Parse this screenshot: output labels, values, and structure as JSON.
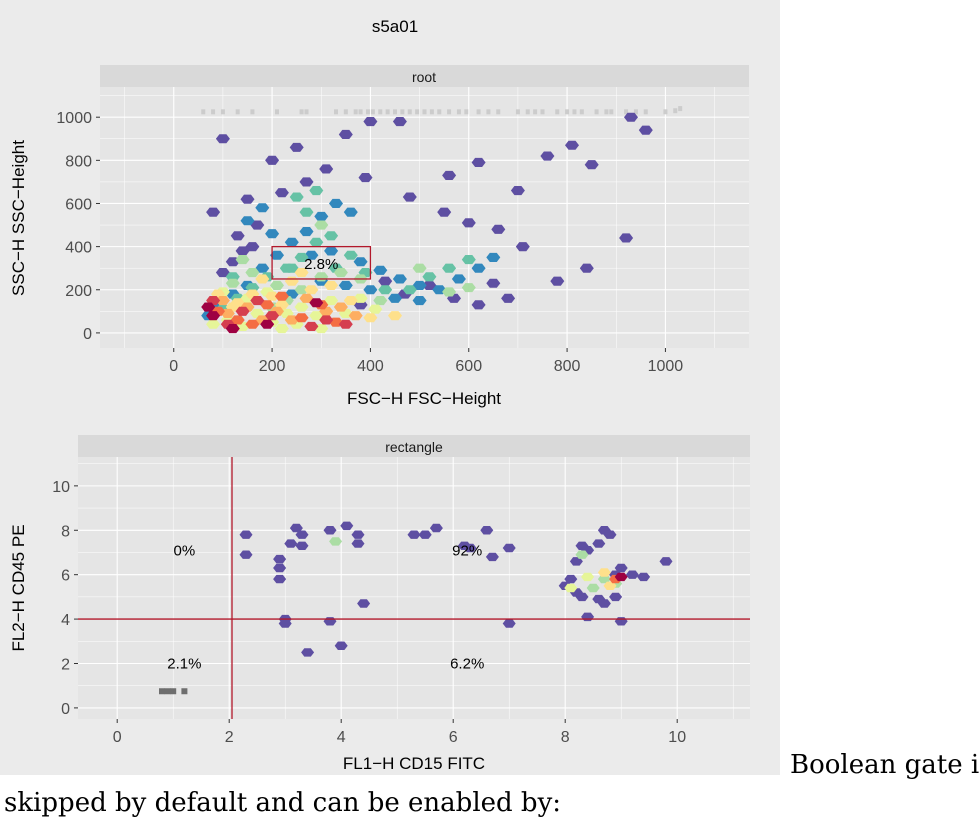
{
  "figure": {
    "title": "s5a01"
  },
  "chart_data": [
    {
      "type": "scatter",
      "subtype": "hexbin-density",
      "strip_label": "root",
      "xlabel": "FSC−H FSC−Height",
      "ylabel": "SSC−H SSC−Height",
      "xlim": [
        -150,
        1170
      ],
      "ylim": [
        -70,
        1140
      ],
      "x_ticks": [
        "0",
        "200",
        "400",
        "600",
        "800",
        "1000"
      ],
      "y_ticks": [
        "0",
        "200",
        "400",
        "600",
        "800",
        "1000"
      ],
      "gate": {
        "type": "rectangle",
        "x": [
          200,
          400
        ],
        "y": [
          250,
          400
        ],
        "label": "2.8%",
        "color": "#b2182b"
      },
      "points": [
        [
          100,
          280,
          1
        ],
        [
          120,
          330,
          1
        ],
        [
          140,
          380,
          1
        ],
        [
          160,
          400,
          1
        ],
        [
          130,
          450,
          1
        ],
        [
          170,
          500,
          1
        ],
        [
          80,
          560,
          1
        ],
        [
          150,
          620,
          1
        ],
        [
          220,
          650,
          1
        ],
        [
          270,
          700,
          1
        ],
        [
          310,
          760,
          1
        ],
        [
          100,
          900,
          1
        ],
        [
          200,
          800,
          1
        ],
        [
          250,
          860,
          1
        ],
        [
          350,
          920,
          1
        ],
        [
          400,
          980,
          1
        ],
        [
          460,
          980,
          1
        ],
        [
          390,
          720,
          1
        ],
        [
          480,
          630,
          1
        ],
        [
          550,
          560,
          1
        ],
        [
          600,
          510,
          1
        ],
        [
          660,
          480,
          1
        ],
        [
          710,
          400,
          1
        ],
        [
          780,
          240,
          1
        ],
        [
          840,
          300,
          1
        ],
        [
          920,
          440,
          1
        ],
        [
          700,
          660,
          1
        ],
        [
          560,
          730,
          1
        ],
        [
          620,
          790,
          1
        ],
        [
          760,
          820,
          1
        ],
        [
          810,
          870,
          1
        ],
        [
          850,
          780,
          1
        ],
        [
          930,
          1000,
          1
        ],
        [
          960,
          940,
          1
        ],
        [
          520,
          220,
          1
        ],
        [
          570,
          160,
          1
        ],
        [
          620,
          130,
          1
        ],
        [
          680,
          160,
          1
        ],
        [
          650,
          230,
          1
        ],
        [
          430,
          240,
          1
        ],
        [
          470,
          180,
          1
        ],
        [
          380,
          130,
          1
        ],
        [
          70,
          80,
          2
        ],
        [
          90,
          130,
          2
        ],
        [
          120,
          180,
          2
        ],
        [
          150,
          220,
          2
        ],
        [
          180,
          300,
          2
        ],
        [
          210,
          360,
          2
        ],
        [
          240,
          420,
          2
        ],
        [
          270,
          470,
          2
        ],
        [
          300,
          540,
          2
        ],
        [
          330,
          600,
          2
        ],
        [
          360,
          560,
          2
        ],
        [
          280,
          360,
          2
        ],
        [
          320,
          380,
          2
        ],
        [
          380,
          330,
          2
        ],
        [
          420,
          290,
          2
        ],
        [
          460,
          250,
          2
        ],
        [
          500,
          220,
          2
        ],
        [
          540,
          200,
          2
        ],
        [
          580,
          250,
          2
        ],
        [
          620,
          300,
          2
        ],
        [
          650,
          350,
          2
        ],
        [
          240,
          180,
          2
        ],
        [
          300,
          240,
          2
        ],
        [
          350,
          220,
          2
        ],
        [
          400,
          200,
          2
        ],
        [
          450,
          160,
          2
        ],
        [
          500,
          150,
          2
        ],
        [
          200,
          460,
          2
        ],
        [
          150,
          520,
          2
        ],
        [
          180,
          580,
          2
        ],
        [
          100,
          110,
          3
        ],
        [
          130,
          160,
          3
        ],
        [
          160,
          210,
          3
        ],
        [
          190,
          260,
          3
        ],
        [
          230,
          300,
          3
        ],
        [
          260,
          350,
          3
        ],
        [
          290,
          420,
          3
        ],
        [
          320,
          450,
          3
        ],
        [
          270,
          560,
          3
        ],
        [
          240,
          300,
          3
        ],
        [
          330,
          300,
          3
        ],
        [
          360,
          360,
          3
        ],
        [
          390,
          280,
          3
        ],
        [
          430,
          200,
          3
        ],
        [
          480,
          200,
          3
        ],
        [
          520,
          260,
          3
        ],
        [
          560,
          300,
          3
        ],
        [
          600,
          340,
          3
        ],
        [
          250,
          630,
          3
        ],
        [
          290,
          660,
          3
        ],
        [
          120,
          260,
          3
        ],
        [
          200,
          120,
          4
        ],
        [
          230,
          150,
          4
        ],
        [
          260,
          200,
          4
        ],
        [
          300,
          260,
          4
        ],
        [
          340,
          280,
          4
        ],
        [
          380,
          250,
          4
        ],
        [
          120,
          230,
          4
        ],
        [
          160,
          280,
          4
        ],
        [
          210,
          220,
          4
        ],
        [
          140,
          340,
          4
        ],
        [
          300,
          500,
          4
        ],
        [
          420,
          150,
          4
        ],
        [
          560,
          190,
          4
        ],
        [
          500,
          300,
          4
        ],
        [
          600,
          210,
          4
        ],
        [
          80,
          40,
          5
        ],
        [
          110,
          60,
          5
        ],
        [
          140,
          30,
          5
        ],
        [
          170,
          90,
          5
        ],
        [
          200,
          50,
          5
        ],
        [
          230,
          90,
          5
        ],
        [
          260,
          120,
          5
        ],
        [
          290,
          80,
          5
        ],
        [
          320,
          150,
          5
        ],
        [
          350,
          90,
          5
        ],
        [
          380,
          160,
          5
        ],
        [
          410,
          110,
          5
        ],
        [
          150,
          160,
          5
        ],
        [
          190,
          190,
          5
        ],
        [
          100,
          190,
          5
        ],
        [
          250,
          40,
          5
        ],
        [
          300,
          20,
          5
        ],
        [
          220,
          20,
          5
        ],
        [
          90,
          180,
          6
        ],
        [
          130,
          140,
          6
        ],
        [
          160,
          180,
          6
        ],
        [
          200,
          170,
          6
        ],
        [
          240,
          240,
          6
        ],
        [
          280,
          200,
          6
        ],
        [
          320,
          220,
          6
        ],
        [
          360,
          150,
          6
        ],
        [
          400,
          70,
          6
        ],
        [
          120,
          120,
          6
        ],
        [
          180,
          250,
          6
        ],
        [
          450,
          80,
          6
        ],
        [
          260,
          280,
          6
        ],
        [
          220,
          130,
          6
        ],
        [
          110,
          90,
          7
        ],
        [
          150,
          120,
          7
        ],
        [
          180,
          60,
          7
        ],
        [
          210,
          100,
          7
        ],
        [
          240,
          60,
          7
        ],
        [
          270,
          160,
          7
        ],
        [
          310,
          100,
          7
        ],
        [
          340,
          120,
          7
        ],
        [
          370,
          80,
          7
        ],
        [
          100,
          150,
          7
        ],
        [
          90,
          100,
          8
        ],
        [
          130,
          60,
          8
        ],
        [
          160,
          40,
          8
        ],
        [
          190,
          130,
          8
        ],
        [
          220,
          170,
          8
        ],
        [
          260,
          70,
          8
        ],
        [
          300,
          130,
          8
        ],
        [
          330,
          50,
          8
        ],
        [
          80,
          150,
          9
        ],
        [
          110,
          40,
          9
        ],
        [
          140,
          100,
          9
        ],
        [
          170,
          150,
          9
        ],
        [
          200,
          80,
          9
        ],
        [
          280,
          30,
          9
        ],
        [
          310,
          60,
          9
        ],
        [
          350,
          40,
          9
        ],
        [
          70,
          120,
          10
        ],
        [
          80,
          80,
          10
        ],
        [
          120,
          20,
          10
        ],
        [
          190,
          40,
          10
        ],
        [
          290,
          140,
          10
        ]
      ],
      "saturated_points": [
        [
          60,
          1025
        ],
        [
          80,
          1025
        ],
        [
          100,
          1025
        ],
        [
          130,
          1025
        ],
        [
          160,
          1025
        ],
        [
          210,
          1025
        ],
        [
          260,
          1025
        ],
        [
          270,
          1025
        ],
        [
          330,
          1025
        ],
        [
          350,
          1025
        ],
        [
          370,
          1025
        ],
        [
          380,
          1025
        ],
        [
          395,
          1025
        ],
        [
          405,
          1025
        ],
        [
          420,
          1025
        ],
        [
          435,
          1025
        ],
        [
          450,
          1025
        ],
        [
          465,
          1025
        ],
        [
          480,
          1025
        ],
        [
          495,
          1025
        ],
        [
          510,
          1025
        ],
        [
          525,
          1025
        ],
        [
          540,
          1025
        ],
        [
          560,
          1025
        ],
        [
          580,
          1025
        ],
        [
          595,
          1025
        ],
        [
          620,
          1025
        ],
        [
          640,
          1025
        ],
        [
          660,
          1025
        ],
        [
          700,
          1025
        ],
        [
          720,
          1025
        ],
        [
          735,
          1025
        ],
        [
          750,
          1025
        ],
        [
          780,
          1025
        ],
        [
          800,
          1025
        ],
        [
          815,
          1025
        ],
        [
          830,
          1025
        ],
        [
          860,
          1025
        ],
        [
          880,
          1025
        ],
        [
          890,
          1025
        ],
        [
          920,
          1025
        ],
        [
          940,
          1025
        ],
        [
          960,
          1025
        ],
        [
          1000,
          1025
        ],
        [
          1020,
          1030
        ],
        [
          1030,
          1040
        ]
      ]
    },
    {
      "type": "scatter",
      "subtype": "hexbin-density",
      "strip_label": "rectangle",
      "xlabel": "FL1−H CD15 FITC",
      "ylabel": "FL2−H CD45 PE",
      "xlim": [
        -0.7,
        11.3
      ],
      "ylim": [
        -0.5,
        11.3
      ],
      "x_ticks": [
        "0",
        "2",
        "4",
        "6",
        "8",
        "10"
      ],
      "y_ticks": [
        "0",
        "2",
        "4",
        "6",
        "8",
        "10"
      ],
      "quadrant_gate": {
        "x": 2.05,
        "y": 4.0,
        "color": "#b2182b"
      },
      "quadrant_labels": [
        {
          "x": 1.2,
          "y": 7.1,
          "text": "0%"
        },
        {
          "x": 6.25,
          "y": 7.1,
          "text": "92%"
        },
        {
          "x": 1.2,
          "y": 2.0,
          "text": "2.1%"
        },
        {
          "x": 6.25,
          "y": 2.0,
          "text": "6.2%"
        }
      ],
      "points": [
        [
          2.3,
          7.8,
          1
        ],
        [
          2.3,
          6.9,
          1
        ],
        [
          2.9,
          6.7,
          1
        ],
        [
          2.9,
          6.3,
          1
        ],
        [
          2.9,
          5.8,
          1
        ],
        [
          3.1,
          7.4,
          1
        ],
        [
          3.2,
          8.1,
          1
        ],
        [
          3.3,
          7.8,
          1
        ],
        [
          3.3,
          7.3,
          1
        ],
        [
          3.8,
          8.0,
          1
        ],
        [
          4.1,
          8.2,
          1
        ],
        [
          4.3,
          7.4,
          1
        ],
        [
          4.3,
          7.8,
          1
        ],
        [
          5.3,
          7.8,
          1
        ],
        [
          5.5,
          7.8,
          1
        ],
        [
          5.7,
          8.1,
          1
        ],
        [
          6.2,
          7.3,
          1
        ],
        [
          6.3,
          7.2,
          1
        ],
        [
          6.6,
          8.0,
          1
        ],
        [
          6.7,
          6.8,
          1
        ],
        [
          7.0,
          7.2,
          1
        ],
        [
          3.0,
          4.0,
          1
        ],
        [
          3.0,
          3.8,
          1
        ],
        [
          3.8,
          3.9,
          1
        ],
        [
          4.0,
          2.8,
          1
        ],
        [
          4.4,
          4.7,
          1
        ],
        [
          3.4,
          2.5,
          1
        ],
        [
          7.0,
          3.8,
          1
        ],
        [
          8.2,
          6.6,
          1
        ],
        [
          8.3,
          7.3,
          1
        ],
        [
          8.4,
          7.1,
          1
        ],
        [
          8.6,
          7.4,
          1
        ],
        [
          8.7,
          8.0,
          1
        ],
        [
          8.8,
          7.8,
          1
        ],
        [
          8.9,
          6.0,
          1
        ],
        [
          9.0,
          6.3,
          1
        ],
        [
          9.2,
          6.0,
          1
        ],
        [
          9.4,
          5.9,
          1
        ],
        [
          9.8,
          6.6,
          1
        ],
        [
          9.0,
          3.9,
          1
        ],
        [
          8.4,
          4.1,
          1
        ],
        [
          8.0,
          5.5,
          1
        ],
        [
          8.2,
          5.2,
          1
        ],
        [
          8.3,
          5.0,
          1
        ],
        [
          8.6,
          4.9,
          1
        ],
        [
          8.7,
          4.7,
          1
        ],
        [
          8.9,
          5.0,
          1
        ],
        [
          8.1,
          5.8,
          1
        ],
        [
          3.9,
          7.5,
          4
        ],
        [
          8.3,
          6.9,
          4
        ],
        [
          8.5,
          5.4,
          4
        ],
        [
          8.7,
          5.8,
          4
        ],
        [
          8.9,
          5.6,
          4
        ],
        [
          8.1,
          5.4,
          5
        ],
        [
          8.4,
          5.9,
          5
        ],
        [
          8.7,
          6.1,
          6
        ],
        [
          8.8,
          5.5,
          6
        ],
        [
          8.9,
          5.8,
          8
        ],
        [
          9.0,
          5.9,
          10
        ]
      ],
      "saturated_points": [
        [
          0.8,
          0.75
        ],
        [
          0.9,
          0.75
        ],
        [
          1.0,
          0.75
        ],
        [
          1.2,
          0.75
        ]
      ]
    }
  ]
}
